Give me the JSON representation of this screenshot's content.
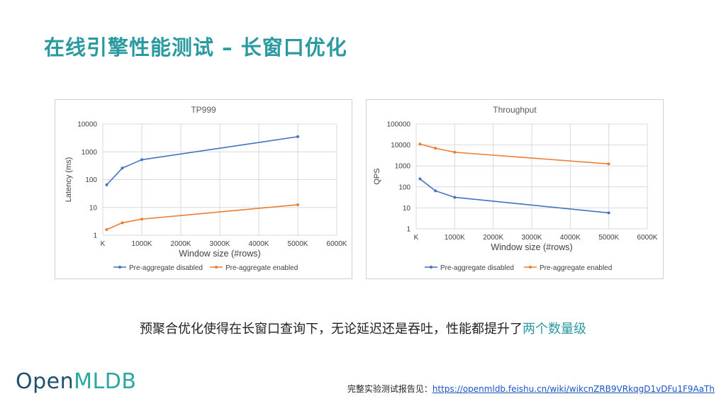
{
  "page": {
    "title": "在线引擎性能测试 – 长窗口优化",
    "caption_prefix": "预聚合优化使得在长窗口查询下，无论延迟还是吞吐，性能都提升了",
    "caption_highlight": "两个数量级",
    "logo_prefix": "Open",
    "logo_accent": "MLDB",
    "footer_label": "完整实验测试报告见：",
    "footer_link": "https://openmldb.feishu.cn/wiki/wikcnZRB9VRkqgD1vDFu1F9AaTh"
  },
  "colors": {
    "accent": "#2b9aa0",
    "series_disabled": "#4472c4",
    "series_enabled": "#ed7d31",
    "grid": "#d9d9d9"
  },
  "chart_data": [
    {
      "type": "line",
      "title": "TP999",
      "xlabel": "Window size (#rows)",
      "ylabel": "Latency (ms)",
      "x_scale": "linear",
      "y_scale": "log",
      "xlim": [
        0,
        6000
      ],
      "ylim": [
        1,
        10000
      ],
      "x_ticks": [
        "K",
        "1000K",
        "2000K",
        "3000K",
        "4000K",
        "5000K",
        "6000K"
      ],
      "y_ticks": [
        "1",
        "10",
        "100",
        "1000",
        "10000"
      ],
      "grid": true,
      "legend": "bottom",
      "series": [
        {
          "name": "Pre-aggregate disabled",
          "x": [
            100,
            500,
            1000,
            5000
          ],
          "y": [
            65,
            260,
            520,
            3500
          ]
        },
        {
          "name": "Pre-aggregate enabled",
          "x": [
            100,
            500,
            1000,
            5000
          ],
          "y": [
            1.6,
            2.8,
            3.8,
            12.5
          ]
        }
      ]
    },
    {
      "type": "line",
      "title": "Throughput",
      "xlabel": "Window size (#rows)",
      "ylabel": "QPS",
      "x_scale": "linear",
      "y_scale": "log",
      "xlim": [
        0,
        6000
      ],
      "ylim": [
        1,
        100000
      ],
      "x_ticks": [
        "K",
        "1000K",
        "2000K",
        "3000K",
        "4000K",
        "5000K",
        "6000K"
      ],
      "y_ticks": [
        "1",
        "10",
        "100",
        "1000",
        "10000",
        "100000"
      ],
      "grid": true,
      "legend": "bottom",
      "series": [
        {
          "name": "Pre-aggregate disabled",
          "x": [
            100,
            500,
            1000,
            5000
          ],
          "y": [
            240,
            65,
            32,
            5.8
          ]
        },
        {
          "name": "Pre-aggregate enabled",
          "x": [
            100,
            500,
            1000,
            5000
          ],
          "y": [
            11000,
            7000,
            4500,
            1250
          ]
        }
      ]
    }
  ]
}
